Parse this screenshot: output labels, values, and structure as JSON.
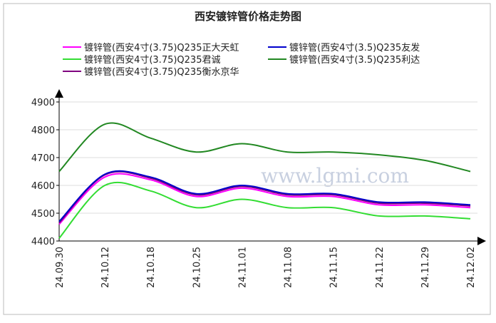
{
  "chart_data": {
    "type": "line",
    "title": "西安镀锌管价格走势图",
    "watermark": "www.lgmi.com",
    "categories": [
      "24.09.30",
      "24.10.12",
      "24.10.18",
      "24.10.25",
      "24.11.01",
      "24.11.08",
      "24.11.15",
      "24.11.22",
      "24.11.29",
      "24.12.02"
    ],
    "series": [
      {
        "name": "镀锌管(西安4寸(3.75)Q235正大天虹",
        "color": "#ff00ff",
        "values": [
          4460,
          4630,
          4620,
          4560,
          4590,
          4560,
          4560,
          4530,
          4530,
          4520
        ]
      },
      {
        "name": "镀锌管(西安4寸(3.5)Q235友发",
        "color": "#0000cc",
        "values": [
          4470,
          4640,
          4630,
          4570,
          4600,
          4570,
          4570,
          4540,
          4540,
          4530
        ]
      },
      {
        "name": "镀锌管(西安4寸(3.75)Q235君诚",
        "color": "#33dd33",
        "values": [
          4410,
          4600,
          4580,
          4520,
          4550,
          4520,
          4520,
          4490,
          4490,
          4480
        ]
      },
      {
        "name": "镀锌管(西安4寸(3.5)Q235利达",
        "color": "#228822",
        "values": [
          4650,
          4820,
          4770,
          4720,
          4750,
          4720,
          4720,
          4710,
          4690,
          4650
        ]
      },
      {
        "name": "镀锌管(西安4寸(3.75)Q235衡水京华",
        "color": "#800080",
        "values": [
          4465,
          4638,
          4626,
          4566,
          4596,
          4566,
          4566,
          4536,
          4536,
          4526
        ]
      }
    ],
    "ylim": [
      4400,
      4900
    ],
    "yticks": [
      4400,
      4500,
      4600,
      4700,
      4800,
      4900
    ],
    "grid": true
  }
}
